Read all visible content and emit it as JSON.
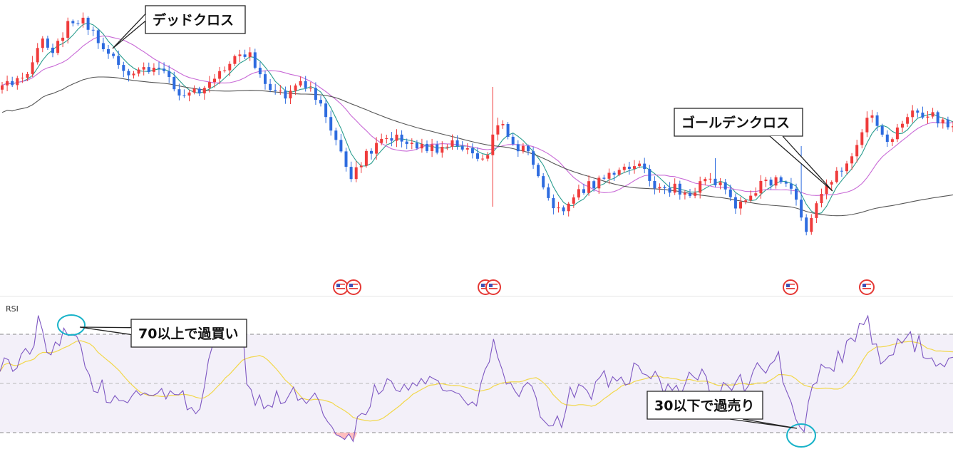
{
  "chart_data": [
    {
      "type": "candlestick",
      "pane": "price",
      "title": "",
      "series": [
        {
          "kind": "candles",
          "color_up": "#ef3b3b",
          "color_down": "#2d6bdf"
        },
        {
          "kind": "moving-average",
          "color": "#2a9d8f"
        },
        {
          "kind": "moving-average",
          "color": "#c869d6"
        },
        {
          "kind": "moving-average",
          "color": "#555555"
        }
      ],
      "event_markers": [
        {
          "icon": "us-flag-icon"
        },
        {
          "icon": "us-flag-icon"
        },
        {
          "icon": "us-flag-icon"
        },
        {
          "icon": "us-flag-icon"
        },
        {
          "icon": "us-flag-icon"
        },
        {
          "icon": "us-flag-icon"
        }
      ],
      "annotations": [
        {
          "id": "dead-cross",
          "text": "デッドクロス"
        },
        {
          "id": "golden-cross",
          "text": "ゴールデンクロス"
        }
      ]
    },
    {
      "type": "line",
      "pane": "oscillator",
      "label": "RSI",
      "levels": [
        70,
        50,
        30
      ],
      "series": [
        {
          "name": "RSI",
          "color": "#7e57c2"
        },
        {
          "color": "#f2d74a"
        }
      ],
      "band_color": "#7e57c2",
      "annotations": [
        {
          "id": "overbought",
          "text": "70以上で過買い"
        },
        {
          "id": "oversold",
          "text": "30以下で過売り"
        }
      ]
    }
  ]
}
